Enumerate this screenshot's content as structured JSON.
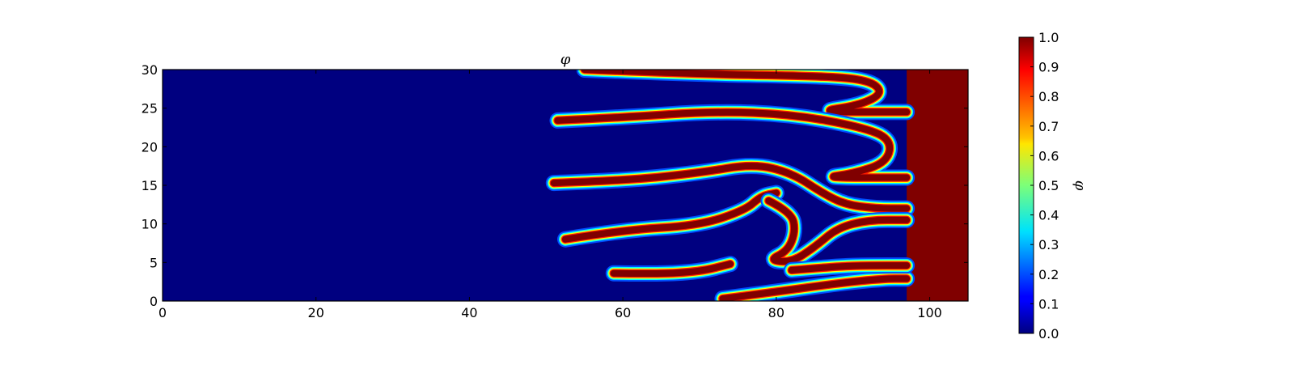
{
  "chart_data": {
    "type": "heatmap",
    "title": "φ",
    "colorbar_label": "φ",
    "colormap": "jet",
    "xlim": [
      0,
      105
    ],
    "ylim": [
      0,
      30
    ],
    "clim": [
      0,
      1
    ],
    "x_ticks": [
      0,
      20,
      40,
      60,
      80,
      100
    ],
    "y_ticks": [
      0,
      5,
      10,
      15,
      20,
      25,
      30
    ],
    "colorbar_ticks": [
      0.0,
      0.1,
      0.2,
      0.3,
      0.4,
      0.5,
      0.6,
      0.7,
      0.8,
      0.9,
      1.0
    ],
    "x_tick_labels": [
      "0",
      "20",
      "40",
      "60",
      "80",
      "100"
    ],
    "y_tick_labels": [
      "0",
      "5",
      "10",
      "15",
      "20",
      "25",
      "30"
    ],
    "colorbar_tick_labels": [
      "0.0",
      "0.1",
      "0.2",
      "0.3",
      "0.4",
      "0.5",
      "0.6",
      "0.7",
      "0.8",
      "0.9",
      "1.0"
    ],
    "background_value": 0.0,
    "right_region": {
      "x_from": 97,
      "value": 1.0
    },
    "fingers": [
      {
        "name": "finger-top",
        "path": [
          [
            55,
            30
          ],
          [
            70,
            29.4
          ],
          [
            85,
            29.2
          ],
          [
            92,
            28.7
          ],
          [
            94,
            27
          ],
          [
            91,
            25.4
          ],
          [
            85,
            24.5
          ],
          [
            97,
            24.5
          ]
        ],
        "value": 1.0
      },
      {
        "name": "finger-y23",
        "path": [
          [
            51.5,
            23.4
          ],
          [
            60,
            23.8
          ],
          [
            72,
            24.6
          ],
          [
            82,
            24.2
          ],
          [
            91,
            22.6
          ],
          [
            95,
            21
          ],
          [
            94.5,
            18
          ],
          [
            90,
            16.5
          ],
          [
            86,
            16
          ],
          [
            97,
            16
          ]
        ],
        "value": 1.0
      },
      {
        "name": "finger-y15",
        "path": [
          [
            51,
            15.3
          ],
          [
            60,
            15.6
          ],
          [
            70,
            16.6
          ],
          [
            77,
            17.8
          ],
          [
            82,
            16.6
          ],
          [
            86,
            14
          ],
          [
            89,
            12.5
          ],
          [
            93,
            12
          ],
          [
            97,
            12
          ]
        ],
        "value": 1.0
      },
      {
        "name": "finger-y8",
        "path": [
          [
            52.5,
            8
          ],
          [
            60,
            9.2
          ],
          [
            70,
            9.8
          ],
          [
            76,
            11.8
          ],
          [
            78,
            13.6
          ],
          [
            80,
            14
          ]
        ],
        "value": 1.0
      },
      {
        "name": "finger-hook",
        "path": [
          [
            79,
            13
          ],
          [
            82,
            11.5
          ],
          [
            82.5,
            9
          ],
          [
            81.5,
            6.5
          ],
          [
            79,
            5.3
          ],
          [
            82,
            5
          ],
          [
            85,
            7
          ],
          [
            88,
            9.5
          ],
          [
            92,
            10.5
          ],
          [
            97,
            10.5
          ]
        ],
        "value": 1.0
      },
      {
        "name": "finger-y3",
        "path": [
          [
            58.8,
            3.6
          ],
          [
            64,
            3.5
          ],
          [
            70,
            3.8
          ],
          [
            74,
            4.8
          ]
        ],
        "value": 1.0
      },
      {
        "name": "finger-low",
        "path": [
          [
            73,
            0.3
          ],
          [
            80,
            1.2
          ],
          [
            88,
            2.3
          ],
          [
            94,
            2.9
          ],
          [
            97,
            2.9
          ]
        ],
        "value": 1.0
      },
      {
        "name": "finger-y4",
        "path": [
          [
            82,
            4
          ],
          [
            88,
            4.5
          ],
          [
            92,
            4.6
          ],
          [
            97,
            4.6
          ]
        ],
        "value": 1.0
      }
    ]
  }
}
